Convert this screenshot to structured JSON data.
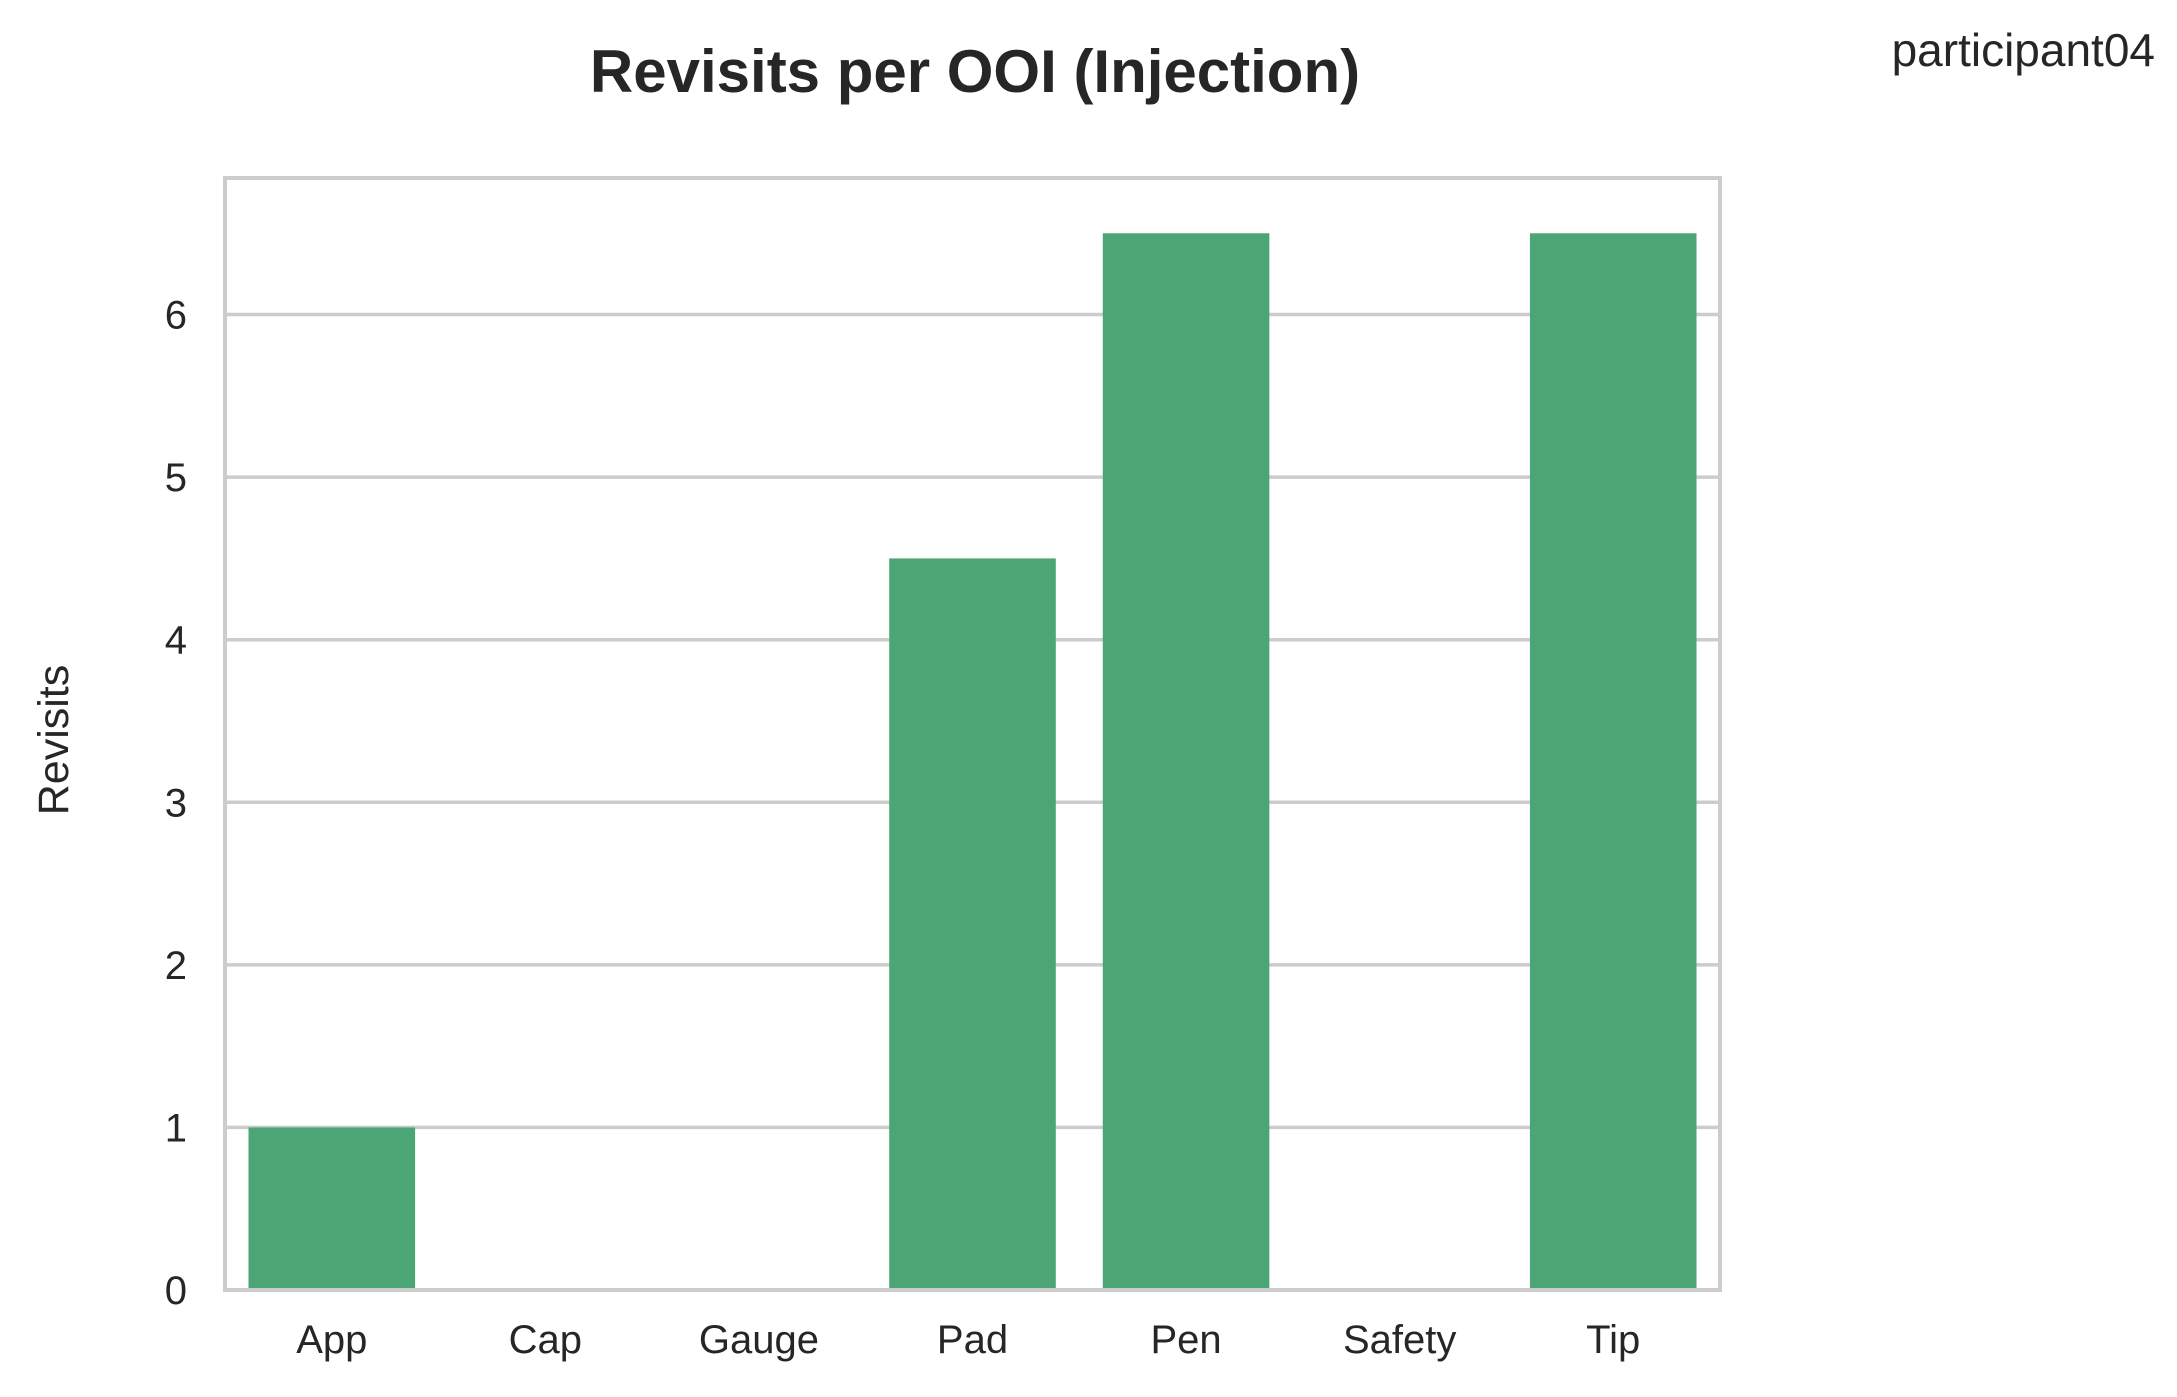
{
  "corner_label": "participant04",
  "chart_data": {
    "type": "bar",
    "title": "Revisits per OOI (Injection)",
    "xlabel": "",
    "ylabel": "Revisits",
    "categories": [
      "App",
      "Cap",
      "Gauge",
      "Pad",
      "Pen",
      "Safety",
      "Tip"
    ],
    "values": [
      1,
      0,
      0,
      4.5,
      6.5,
      0,
      6.5
    ],
    "ylim": [
      0,
      6.84
    ],
    "yticks": [
      0,
      1,
      2,
      3,
      4,
      5,
      6
    ],
    "grid": true,
    "bar_color": "#4ca574",
    "grid_color": "#cccccc",
    "axis_color": "#cccccc"
  }
}
